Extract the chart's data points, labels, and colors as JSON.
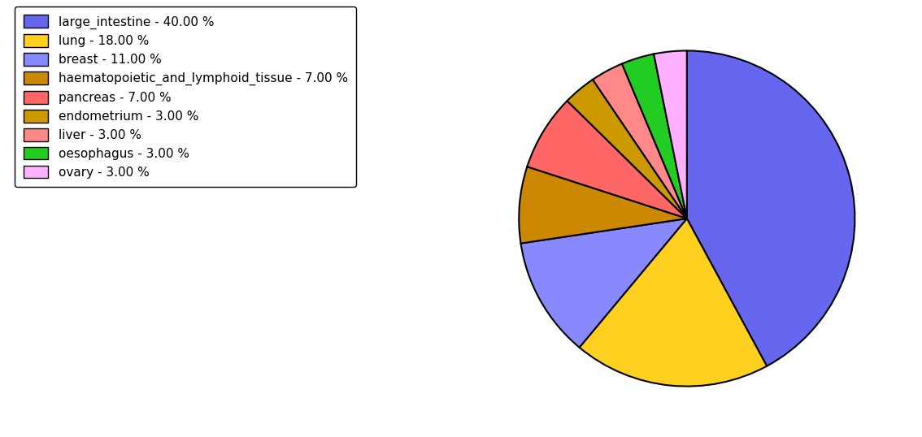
{
  "labels": [
    "large_intestine",
    "lung",
    "breast",
    "haematopoietic_and_lymphoid_tissue",
    "pancreas",
    "endometrium",
    "liver",
    "oesophagus",
    "ovary"
  ],
  "values": [
    40,
    18,
    11,
    7,
    7,
    3,
    3,
    3,
    3
  ],
  "colors": [
    "#6666EE",
    "#FFD020",
    "#8888FF",
    "#CC8800",
    "#FF6666",
    "#CC9900",
    "#FF8888",
    "#22CC22",
    "#FFB0FF"
  ],
  "legend_labels": [
    "large_intestine - 40.00 %",
    "lung - 18.00 %",
    "breast - 11.00 %",
    "haematopoietic_and_lymphoid_tissue - 7.00 %",
    "pancreas - 7.00 %",
    "endometrium - 3.00 %",
    "liver - 3.00 %",
    "oesophagus - 3.00 %",
    "ovary - 3.00 %"
  ],
  "startangle": 90,
  "background_color": "#FFFFFF",
  "legend_fontsize": 11,
  "figwidth": 11.34,
  "figheight": 5.38,
  "dpi": 100
}
